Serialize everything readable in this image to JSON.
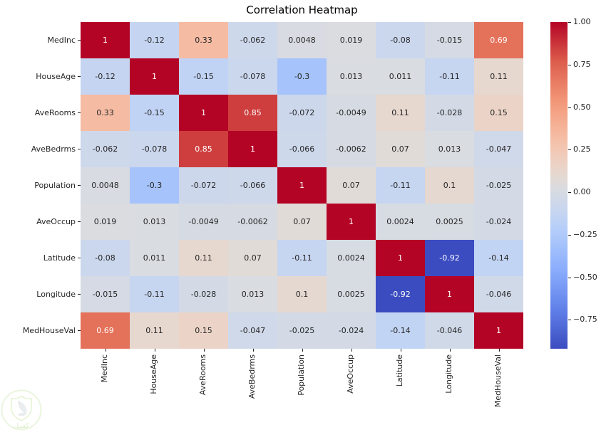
{
  "title": "Correlation Heatmap",
  "watermark": {
    "text": "كفيـل"
  },
  "chart_data": {
    "type": "heatmap",
    "title": "Correlation Heatmap",
    "colormap": "coolwarm",
    "vmin": -0.92,
    "vmax": 1.0,
    "annotations": true,
    "legend_position": "right",
    "categories": [
      "MedInc",
      "HouseAge",
      "AveRooms",
      "AveBedrms",
      "Population",
      "AveOccup",
      "Latitude",
      "Longitude",
      "MedHouseVal"
    ],
    "matrix": [
      [
        1,
        -0.12,
        0.33,
        -0.062,
        0.0048,
        0.019,
        -0.08,
        -0.015,
        0.69
      ],
      [
        -0.12,
        1,
        -0.15,
        -0.078,
        -0.3,
        0.013,
        0.011,
        -0.11,
        0.11
      ],
      [
        0.33,
        -0.15,
        1,
        0.85,
        -0.072,
        -0.0049,
        0.11,
        -0.028,
        0.15
      ],
      [
        -0.062,
        -0.078,
        0.85,
        1,
        -0.066,
        -0.0062,
        0.07,
        0.013,
        -0.047
      ],
      [
        0.0048,
        -0.3,
        -0.072,
        -0.066,
        1,
        0.07,
        -0.11,
        0.1,
        -0.025
      ],
      [
        0.019,
        0.013,
        -0.0049,
        -0.0062,
        0.07,
        1,
        0.0024,
        0.0025,
        -0.024
      ],
      [
        -0.08,
        0.011,
        0.11,
        0.07,
        -0.11,
        0.0024,
        1,
        -0.92,
        -0.14
      ],
      [
        -0.015,
        -0.11,
        -0.028,
        0.013,
        0.1,
        0.0025,
        -0.92,
        1,
        -0.046
      ],
      [
        0.69,
        0.11,
        0.15,
        -0.047,
        -0.025,
        -0.024,
        -0.14,
        -0.046,
        1
      ]
    ],
    "colorbar_ticks": [
      {
        "label": "1.00",
        "value": 1.0
      },
      {
        "label": "0.75",
        "value": 0.75
      },
      {
        "label": "0.50",
        "value": 0.5
      },
      {
        "label": "0.25",
        "value": 0.25
      },
      {
        "label": "0.00",
        "value": 0.0
      },
      {
        "label": "−0.25",
        "value": -0.25
      },
      {
        "label": "−0.50",
        "value": -0.5
      },
      {
        "label": "−0.75",
        "value": -0.75
      }
    ],
    "theme_colors": {
      "strong_negative": "#3b4cc0",
      "neutral": "#dddddd",
      "strong_positive": "#b40426"
    }
  }
}
